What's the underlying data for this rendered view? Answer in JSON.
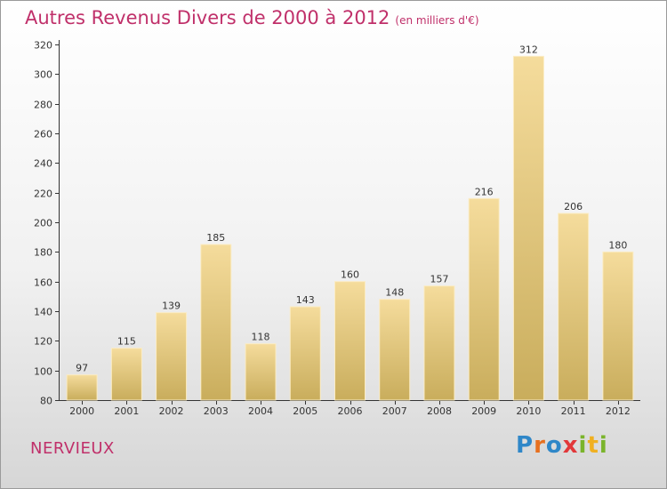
{
  "header": {
    "title": "Autres Revenus Divers de 2000 à 2012",
    "subtitle": "(en milliers d'€)"
  },
  "footer": {
    "commune": "NERVIEUX",
    "logo_letters": [
      "P",
      "r",
      "o",
      "x",
      "i",
      "t",
      "i"
    ]
  },
  "colors": {
    "title": "#c0306a",
    "bar_light": "#f5dc9c",
    "bar_dark": "#c9ad5c",
    "logo": [
      "#2f87c8",
      "#e7701f",
      "#2f87c8",
      "#e2383a",
      "#7ab42b",
      "#f0b020",
      "#7ab42b"
    ]
  },
  "chart_data": {
    "type": "bar",
    "title": "Autres Revenus Divers de 2000 à 2012",
    "subtitle": "(en milliers d'€)",
    "categories": [
      "2000",
      "2001",
      "2002",
      "2003",
      "2004",
      "2005",
      "2006",
      "2007",
      "2008",
      "2009",
      "2010",
      "2011",
      "2012"
    ],
    "values": [
      97,
      115,
      139,
      185,
      118,
      143,
      160,
      148,
      157,
      216,
      312,
      206,
      180
    ],
    "ylim": [
      80,
      320
    ],
    "yticks": [
      80,
      100,
      120,
      140,
      160,
      180,
      200,
      220,
      240,
      260,
      280,
      300,
      320
    ],
    "grid": false,
    "legend": "none"
  }
}
